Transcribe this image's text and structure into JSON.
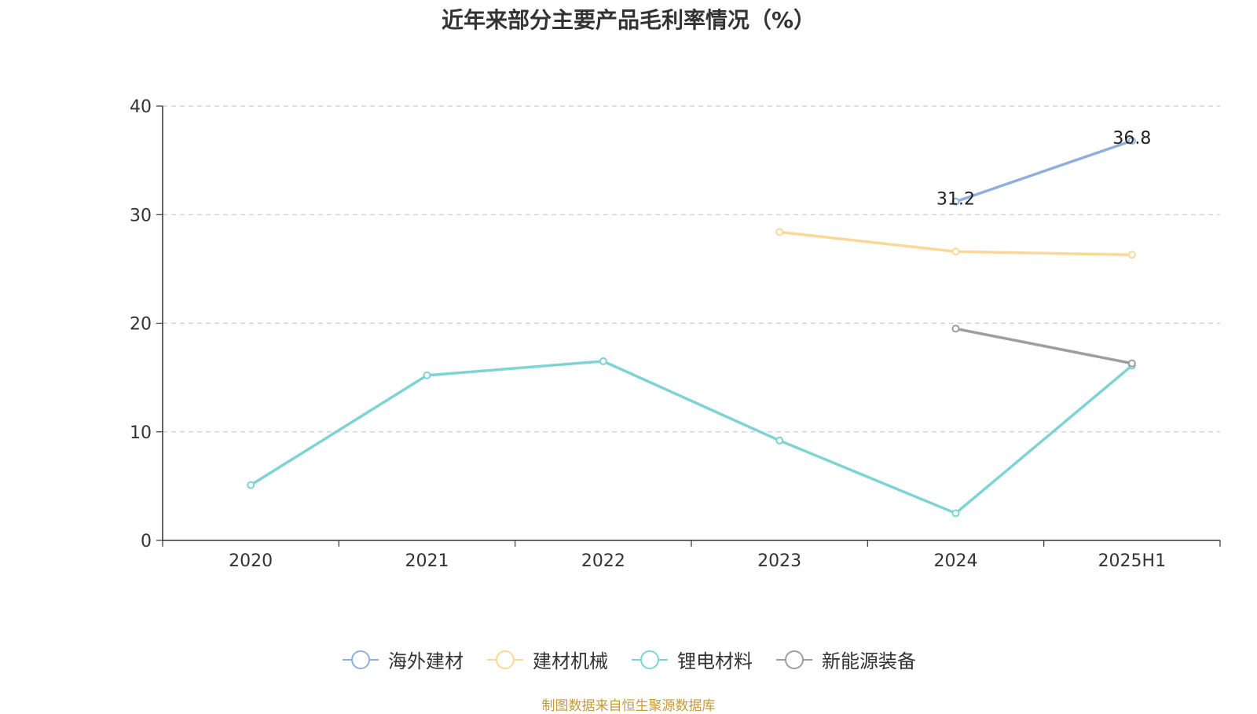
{
  "chart_data": {
    "type": "line",
    "title": "近年来部分主要产品毛利率情况（%）",
    "xlabel": "",
    "ylabel": "",
    "categories": [
      "2020",
      "2021",
      "2022",
      "2023",
      "2024",
      "2025H1"
    ],
    "ylim": [
      0,
      40
    ],
    "yticks": [
      "0",
      "10",
      "20",
      "30",
      "40"
    ],
    "grid": true,
    "legend_position": "bottom-center",
    "series": [
      {
        "name": "海外建材",
        "color": "#8fb0dc",
        "values": [
          null,
          null,
          null,
          null,
          31.2,
          36.8
        ],
        "labels": [
          null,
          null,
          null,
          null,
          "31.2",
          "36.8"
        ]
      },
      {
        "name": "建材机械",
        "color": "#fbd89a",
        "values": [
          null,
          null,
          null,
          28.4,
          26.6,
          26.3
        ],
        "labels": []
      },
      {
        "name": "锂电材料",
        "color": "#7fd3d3",
        "values": [
          5.1,
          15.2,
          16.5,
          9.2,
          2.5,
          16.1
        ],
        "labels": []
      },
      {
        "name": "新能源装备",
        "color": "#9e9e9e",
        "values": [
          null,
          null,
          null,
          null,
          19.5,
          16.3
        ],
        "labels": []
      }
    ],
    "source": "制图数据来自恒生聚源数据库"
  }
}
